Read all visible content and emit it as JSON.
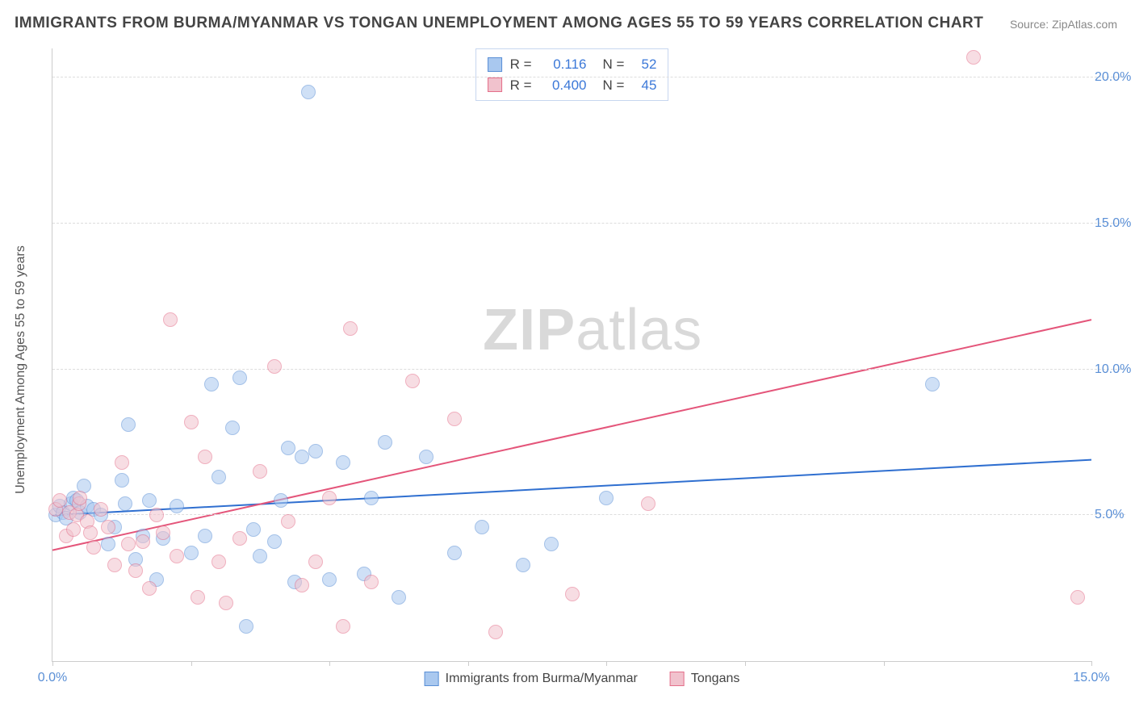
{
  "title": "IMMIGRANTS FROM BURMA/MYANMAR VS TONGAN UNEMPLOYMENT AMONG AGES 55 TO 59 YEARS CORRELATION CHART",
  "source_label": "Source: ZipAtlas.com",
  "watermark_a": "ZIP",
  "watermark_b": "atlas",
  "chart": {
    "type": "scatter",
    "y_axis_title": "Unemployment Among Ages 55 to 59 years",
    "background_color": "#ffffff",
    "grid_color": "#dddddd",
    "axis_color": "#cccccc",
    "tick_label_color": "#5a8fd6",
    "xlim": [
      0,
      15
    ],
    "ylim": [
      0,
      21
    ],
    "x_ticks": [
      0,
      2,
      4,
      6,
      8,
      10,
      12,
      15
    ],
    "x_tick_labels": {
      "0": "0.0%",
      "15": "15.0%"
    },
    "y_ticks": [
      5,
      10,
      15,
      20
    ],
    "y_tick_labels": {
      "5": "5.0%",
      "10": "10.0%",
      "15": "15.0%",
      "20": "20.0%"
    },
    "marker_radius": 9,
    "marker_opacity": 0.55,
    "marker_border_width": 1.4,
    "trend_line_width": 2
  },
  "series": [
    {
      "id": "burma",
      "label": "Immigrants from Burma/Myanmar",
      "fill_color": "#a9c8ef",
      "stroke_color": "#5a8fd6",
      "trend_color": "#2f6fd0",
      "R": "0.116",
      "N": "52",
      "trend": {
        "x1": 0,
        "y1": 5.0,
        "x2": 15,
        "y2": 6.9
      },
      "points": [
        [
          0.05,
          5.0
        ],
        [
          0.1,
          5.3
        ],
        [
          0.15,
          5.1
        ],
        [
          0.2,
          4.9
        ],
        [
          0.27,
          5.4
        ],
        [
          0.3,
          5.6
        ],
        [
          0.35,
          5.5
        ],
        [
          0.4,
          5.1
        ],
        [
          0.45,
          6.0
        ],
        [
          0.5,
          5.3
        ],
        [
          0.6,
          5.2
        ],
        [
          0.7,
          5.0
        ],
        [
          0.8,
          4.0
        ],
        [
          0.9,
          4.6
        ],
        [
          1.0,
          6.2
        ],
        [
          1.05,
          5.4
        ],
        [
          1.1,
          8.1
        ],
        [
          1.2,
          3.5
        ],
        [
          1.3,
          4.3
        ],
        [
          1.4,
          5.5
        ],
        [
          1.5,
          2.8
        ],
        [
          1.6,
          4.2
        ],
        [
          1.8,
          5.3
        ],
        [
          2.0,
          3.7
        ],
        [
          2.2,
          4.3
        ],
        [
          2.3,
          9.5
        ],
        [
          2.4,
          6.3
        ],
        [
          2.6,
          8.0
        ],
        [
          2.7,
          9.7
        ],
        [
          2.8,
          1.2
        ],
        [
          2.9,
          4.5
        ],
        [
          3.0,
          3.6
        ],
        [
          3.2,
          4.1
        ],
        [
          3.3,
          5.5
        ],
        [
          3.4,
          7.3
        ],
        [
          3.5,
          2.7
        ],
        [
          3.6,
          7.0
        ],
        [
          3.7,
          19.5
        ],
        [
          3.8,
          7.2
        ],
        [
          4.0,
          2.8
        ],
        [
          4.2,
          6.8
        ],
        [
          4.5,
          3.0
        ],
        [
          4.6,
          5.6
        ],
        [
          4.8,
          7.5
        ],
        [
          5.0,
          2.2
        ],
        [
          5.4,
          7.0
        ],
        [
          5.8,
          3.7
        ],
        [
          6.2,
          4.6
        ],
        [
          6.8,
          3.3
        ],
        [
          7.2,
          4.0
        ],
        [
          8.0,
          5.6
        ],
        [
          12.7,
          9.5
        ]
      ]
    },
    {
      "id": "tongans",
      "label": "Tongans",
      "fill_color": "#f1c2cd",
      "stroke_color": "#e46f8a",
      "trend_color": "#e4557a",
      "R": "0.400",
      "N": "45",
      "trend": {
        "x1": 0,
        "y1": 3.8,
        "x2": 15,
        "y2": 11.7
      },
      "points": [
        [
          0.05,
          5.2
        ],
        [
          0.1,
          5.5
        ],
        [
          0.2,
          4.3
        ],
        [
          0.25,
          5.1
        ],
        [
          0.3,
          4.5
        ],
        [
          0.35,
          5.0
        ],
        [
          0.38,
          5.4
        ],
        [
          0.4,
          5.6
        ],
        [
          0.5,
          4.8
        ],
        [
          0.55,
          4.4
        ],
        [
          0.6,
          3.9
        ],
        [
          0.7,
          5.2
        ],
        [
          0.8,
          4.6
        ],
        [
          0.9,
          3.3
        ],
        [
          1.0,
          6.8
        ],
        [
          1.1,
          4.0
        ],
        [
          1.2,
          3.1
        ],
        [
          1.3,
          4.1
        ],
        [
          1.4,
          2.5
        ],
        [
          1.5,
          5.0
        ],
        [
          1.6,
          4.4
        ],
        [
          1.7,
          11.7
        ],
        [
          1.8,
          3.6
        ],
        [
          2.0,
          8.2
        ],
        [
          2.1,
          2.2
        ],
        [
          2.2,
          7.0
        ],
        [
          2.4,
          3.4
        ],
        [
          2.5,
          2.0
        ],
        [
          2.7,
          4.2
        ],
        [
          3.0,
          6.5
        ],
        [
          3.2,
          10.1
        ],
        [
          3.4,
          4.8
        ],
        [
          3.6,
          2.6
        ],
        [
          3.8,
          3.4
        ],
        [
          4.0,
          5.6
        ],
        [
          4.2,
          1.2
        ],
        [
          4.3,
          11.4
        ],
        [
          4.6,
          2.7
        ],
        [
          5.2,
          9.6
        ],
        [
          5.8,
          8.3
        ],
        [
          6.4,
          1.0
        ],
        [
          7.5,
          2.3
        ],
        [
          8.6,
          5.4
        ],
        [
          13.3,
          20.7
        ],
        [
          14.8,
          2.2
        ]
      ]
    }
  ],
  "correlation_legend": {
    "R_label": "R =",
    "N_label": "N ="
  },
  "series_legend": {}
}
